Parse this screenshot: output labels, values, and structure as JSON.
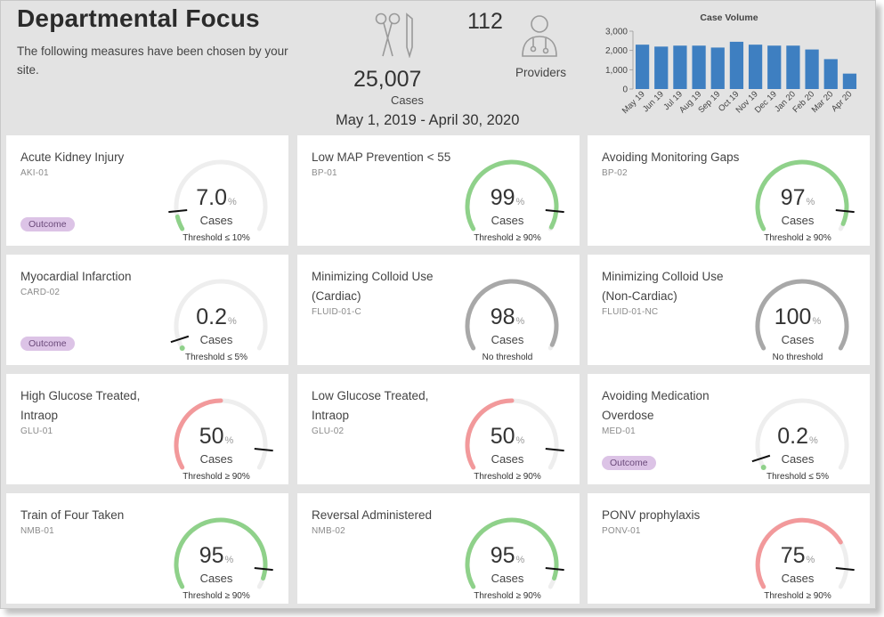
{
  "header": {
    "title": "Departmental Focus",
    "subtitle": "The following measures have been chosen by your site.",
    "cases_value": "25,007",
    "cases_label": "Cases",
    "providers_value": "112",
    "providers_label": "Providers",
    "date_range": "May 1, 2019 - April 30, 2020"
  },
  "chart_data": {
    "type": "bar",
    "title": "Case Volume",
    "categories": [
      "May 19",
      "Jun 19",
      "Jul 19",
      "Aug 19",
      "Sep 19",
      "Oct 19",
      "Nov 19",
      "Dec 19",
      "Jan 20",
      "Feb 20",
      "Mar 20",
      "Apr 20"
    ],
    "values": [
      2300,
      2200,
      2250,
      2250,
      2150,
      2450,
      2300,
      2250,
      2250,
      2050,
      1550,
      800
    ],
    "yticks": [
      "0",
      "1,000",
      "2,000",
      "3,000"
    ],
    "ylim": [
      0,
      3000
    ],
    "bar_color": "#3e7fc1"
  },
  "colors": {
    "green": "#8fd18a",
    "red": "#f2999b",
    "gray": "#a8a8a8",
    "track": "#eeeeee"
  },
  "measures": [
    {
      "name": "Acute Kidney Injury",
      "code": "AKI-01",
      "value": "7.0",
      "pct": "%",
      "cases_label": "Cases",
      "threshold": "Threshold ≤ 10%",
      "fraction": 0.07,
      "threshold_fraction": 0.1,
      "status": "green",
      "outcome": "Outcome"
    },
    {
      "name": "Low MAP Prevention < 55",
      "code": "BP-01",
      "value": "99",
      "pct": "%",
      "cases_label": "Cases",
      "threshold": "Threshold ≥ 90%",
      "fraction": 0.99,
      "threshold_fraction": 0.9,
      "status": "green",
      "outcome": null
    },
    {
      "name": "Avoiding Monitoring Gaps",
      "code": "BP-02",
      "value": "97",
      "pct": "%",
      "cases_label": "Cases",
      "threshold": "Threshold ≥ 90%",
      "fraction": 0.97,
      "threshold_fraction": 0.9,
      "status": "green",
      "outcome": null
    },
    {
      "name": "Myocardial Infarction",
      "code": "CARD-02",
      "value": "0.2",
      "pct": "%",
      "cases_label": "Cases",
      "threshold": "Threshold ≤ 5%",
      "fraction": 0.002,
      "threshold_fraction": 0.05,
      "status": "green",
      "outcome": "Outcome"
    },
    {
      "name": "Minimizing Colloid Use (Cardiac)",
      "code": "FLUID-01-C",
      "value": "98",
      "pct": "%",
      "cases_label": "Cases",
      "threshold": "No threshold",
      "fraction": 0.98,
      "threshold_fraction": null,
      "status": "gray",
      "outcome": null
    },
    {
      "name": "Minimizing Colloid Use (Non-Cardiac)",
      "code": "FLUID-01-NC",
      "value": "100",
      "pct": "%",
      "cases_label": "Cases",
      "threshold": "No threshold",
      "fraction": 1.0,
      "threshold_fraction": null,
      "status": "gray",
      "outcome": null
    },
    {
      "name": "High Glucose Treated, Intraop",
      "code": "GLU-01",
      "value": "50",
      "pct": "%",
      "cases_label": "Cases",
      "threshold": "Threshold ≥ 90%",
      "fraction": 0.5,
      "threshold_fraction": 0.9,
      "status": "red",
      "outcome": null
    },
    {
      "name": "Low Glucose Treated, Intraop",
      "code": "GLU-02",
      "value": "50",
      "pct": "%",
      "cases_label": "Cases",
      "threshold": "Threshold ≥ 90%",
      "fraction": 0.5,
      "threshold_fraction": 0.9,
      "status": "red",
      "outcome": null
    },
    {
      "name": "Avoiding Medication Overdose",
      "code": "MED-01",
      "value": "0.2",
      "pct": "%",
      "cases_label": "Cases",
      "threshold": "Threshold ≤ 5%",
      "fraction": 0.002,
      "threshold_fraction": 0.05,
      "status": "green",
      "outcome": "Outcome"
    },
    {
      "name": "Train of Four Taken",
      "code": "NMB-01",
      "value": "95",
      "pct": "%",
      "cases_label": "Cases",
      "threshold": "Threshold ≥ 90%",
      "fraction": 0.95,
      "threshold_fraction": 0.9,
      "status": "green",
      "outcome": null
    },
    {
      "name": "Reversal Administered",
      "code": "NMB-02",
      "value": "95",
      "pct": "%",
      "cases_label": "Cases",
      "threshold": "Threshold ≥ 90%",
      "fraction": 0.95,
      "threshold_fraction": 0.9,
      "status": "green",
      "outcome": null
    },
    {
      "name": "PONV prophylaxis",
      "code": "PONV-01",
      "value": "75",
      "pct": "%",
      "cases_label": "Cases",
      "threshold": "Threshold ≥ 90%",
      "fraction": 0.75,
      "threshold_fraction": 0.9,
      "status": "red",
      "outcome": null
    }
  ]
}
